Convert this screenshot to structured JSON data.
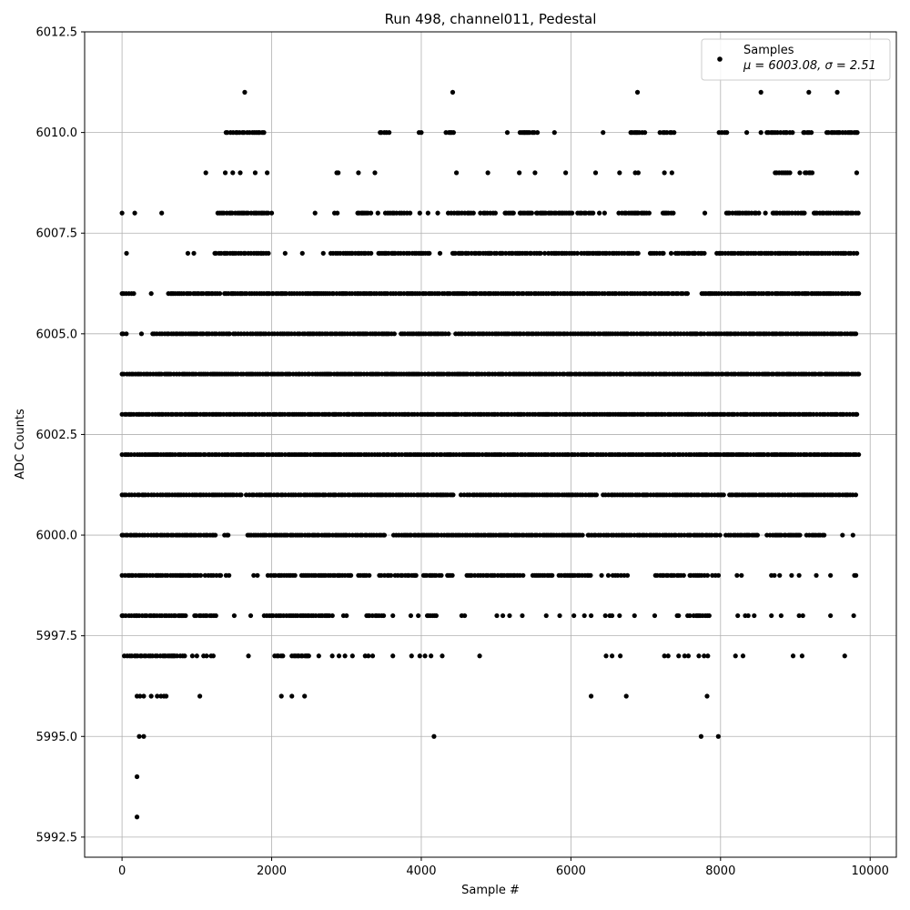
{
  "chart_data": {
    "type": "scatter",
    "title": "Run 498, channel011, Pedestal",
    "xlabel": "Sample #",
    "ylabel": "ADC Counts",
    "xlim": [
      -500,
      10350
    ],
    "ylim": [
      5992.0,
      6012.5
    ],
    "xticks": [
      0,
      2000,
      4000,
      6000,
      8000,
      10000
    ],
    "xtick_labels": [
      "0",
      "2000",
      "4000",
      "6000",
      "8000",
      "10000"
    ],
    "yticks": [
      5992.5,
      5995.0,
      5997.5,
      6000.0,
      6002.5,
      6005.0,
      6007.5,
      6010.0,
      6012.5
    ],
    "ytick_labels": [
      "5992.5",
      "5995.0",
      "5997.5",
      "6000.0",
      "6002.5",
      "6005.0",
      "6007.5",
      "6010.0",
      "6012.5"
    ],
    "grid": true,
    "legend_position": "top-right",
    "marker_color": "#000000",
    "series": [
      {
        "name": "Samples",
        "legend_label": "Samples",
        "legend_stats": "μ = 6003.08, σ = 2.51",
        "mean": 6003.08,
        "sigma": 2.51,
        "n_samples": 9850,
        "level_coverage": [
          {
            "y": 6011,
            "x": [
              1640,
              4420,
              6890,
              8540,
              9180,
              9560
            ]
          },
          {
            "y": 6010,
            "ranges": [
              [
                1390,
                1900
              ],
              [
                3450,
                3600
              ],
              [
                4330,
                4460
              ],
              [
                5320,
                5560
              ],
              [
                6800,
                7010
              ],
              [
                7190,
                7380
              ],
              [
                7980,
                8100
              ],
              [
                8620,
                8980
              ],
              [
                9110,
                9230
              ],
              [
                9420,
                9840
              ]
            ],
            "x": [
              3970,
              4000,
              5150,
              5780,
              6430,
              8350,
              8540
            ]
          },
          {
            "y": 6009,
            "ranges": [
              [
                8730,
                8930
              ],
              [
                9130,
                9230
              ],
              [
                9820,
                9850
              ]
            ],
            "x": [
              1120,
              1380,
              1480,
              1580,
              1780,
              1940,
              2870,
              2890,
              3160,
              3380,
              4470,
              4890,
              5310,
              5520,
              5930,
              6330,
              6650,
              6860,
              6900,
              7250,
              7350,
              9060
            ]
          },
          {
            "y": 6008,
            "ranges": [
              [
                1280,
                1970
              ],
              [
                2840,
                2880
              ],
              [
                3150,
                3330
              ],
              [
                3520,
                3870
              ],
              [
                4360,
                4700
              ],
              [
                4790,
                5000
              ],
              [
                5120,
                5240
              ],
              [
                5320,
                5500
              ],
              [
                5540,
                5780
              ],
              [
                5800,
                6040
              ],
              [
                6090,
                6300
              ],
              [
                6640,
                7070
              ],
              [
                7230,
                7390
              ],
              [
                8080,
                8520
              ],
              [
                8700,
                9150
              ],
              [
                9250,
                9850
              ]
            ],
            "x": [
              0,
              170,
              530,
              2000,
              2580,
              3420,
              3980,
              4090,
              4220,
              6380,
              6450,
              7790,
              8600
            ]
          },
          {
            "y": 6007,
            "ranges": [
              [
                1240,
                1970
              ],
              [
                2790,
                3350
              ],
              [
                3430,
                4130
              ],
              [
                4420,
                5010
              ],
              [
                5050,
                5600
              ],
              [
                5700,
                6120
              ],
              [
                6140,
                6900
              ],
              [
                7060,
                7270
              ],
              [
                7400,
                7800
              ],
              [
                7950,
                9850
              ]
            ],
            "x": [
              60,
              880,
              960,
              2180,
              2410,
              2690,
              4250,
              5650,
              7340,
              7650
            ]
          },
          {
            "y": 6006,
            "ranges": [
              [
                0,
                160
              ],
              [
                620,
                1320
              ],
              [
                1370,
                4040
              ],
              [
                4060,
                7560
              ],
              [
                7750,
                9850
              ]
            ],
            "x": [
              390
            ]
          },
          {
            "y": 6005,
            "ranges": [
              [
                0,
                70
              ],
              [
                410,
                1460
              ],
              [
                1490,
                3640
              ],
              [
                3730,
                4380
              ],
              [
                4460,
                7800
              ],
              [
                7830,
                9850
              ]
            ],
            "x": [
              260
            ]
          },
          {
            "y": 6004,
            "ranges": [
              [
                0,
                9850
              ]
            ]
          },
          {
            "y": 6003,
            "ranges": [
              [
                0,
                9850
              ]
            ]
          },
          {
            "y": 6002,
            "ranges": [
              [
                0,
                9850
              ]
            ]
          },
          {
            "y": 6001,
            "ranges": [
              [
                0,
                1600
              ],
              [
                1660,
                4450
              ],
              [
                4530,
                6350
              ],
              [
                6430,
                8050
              ],
              [
                8120,
                9850
              ]
            ]
          },
          {
            "y": 6000,
            "ranges": [
              [
                0,
                1250
              ],
              [
                1370,
                1450
              ],
              [
                1680,
                3530
              ],
              [
                3630,
                4350
              ],
              [
                4370,
                6180
              ],
              [
                6230,
                8000
              ],
              [
                8070,
                8520
              ],
              [
                8620,
                9080
              ],
              [
                9150,
                9420
              ]
            ],
            "x": [
              6920,
              9630,
              9770
            ]
          },
          {
            "y": 5999,
            "ranges": [
              [
                0,
                1070
              ],
              [
                1110,
                1330
              ],
              [
                1950,
                2330
              ],
              [
                2400,
                3090
              ],
              [
                3160,
                3330
              ],
              [
                3440,
                3620
              ],
              [
                3650,
                3930
              ],
              [
                4030,
                4290
              ],
              [
                4350,
                4420
              ],
              [
                4610,
                5390
              ],
              [
                5490,
                5750
              ],
              [
                5840,
                6060
              ],
              [
                6090,
                6280
              ],
              [
                6560,
                6760
              ],
              [
                7130,
                7510
              ],
              [
                7590,
                7860
              ],
              [
                7890,
                7990
              ]
            ],
            "x": [
              1390,
              1430,
              1760,
              1810,
              3900,
              3930,
              6410,
              6500,
              8220,
              8280,
              8680,
              8720,
              8790,
              8950,
              9050,
              9280,
              9470,
              9790,
              9810
            ]
          },
          {
            "y": 5998,
            "ranges": [
              [
                0,
                540
              ],
              [
                570,
                860
              ],
              [
                970,
                1270
              ],
              [
                1900,
                2830
              ],
              [
                3270,
                3500
              ],
              [
                4080,
                4180
              ],
              [
                7640,
                7850
              ]
            ],
            "x": [
              1500,
              1720,
              2960,
              3000,
              3620,
              3860,
              3960,
              4200,
              4540,
              4580,
              5010,
              5090,
              5180,
              5350,
              5670,
              5850,
              6040,
              6180,
              6270,
              6460,
              6520,
              6550,
              6650,
              6850,
              7120,
              7420,
              7440,
              7560,
              7590,
              8230,
              8330,
              8370,
              8450,
              8680,
              8810,
              9050,
              9100,
              9470,
              9780
            ]
          },
          {
            "y": 5997,
            "ranges": [
              [
                30,
                850
              ],
              [
                2040,
                2180
              ],
              [
                2270,
                2500
              ],
              [
                3250,
                3300
              ]
            ],
            "x": [
              940,
              1000,
              1090,
              1130,
              1190,
              1220,
              1690,
              2630,
              2810,
              2900,
              2980,
              3080,
              3350,
              3620,
              3870,
              3980,
              4050,
              4130,
              4280,
              4780,
              6470,
              6550,
              6660,
              7250,
              7300,
              7440,
              7520,
              7570,
              7710,
              7780,
              7830,
              8200,
              8300,
              8970,
              9090,
              9660
            ]
          },
          {
            "y": 5996,
            "x": [
              200,
              240,
              290,
              390,
              470,
              520,
              560,
              590,
              1040,
              2130,
              2270,
              2440,
              6270,
              6740,
              7820
            ]
          },
          {
            "y": 5995,
            "x": [
              230,
              290,
              4170,
              7740,
              7970
            ]
          },
          {
            "y": 5994,
            "x": [
              200
            ]
          },
          {
            "y": 5993,
            "x": [
              200
            ]
          }
        ]
      }
    ]
  }
}
